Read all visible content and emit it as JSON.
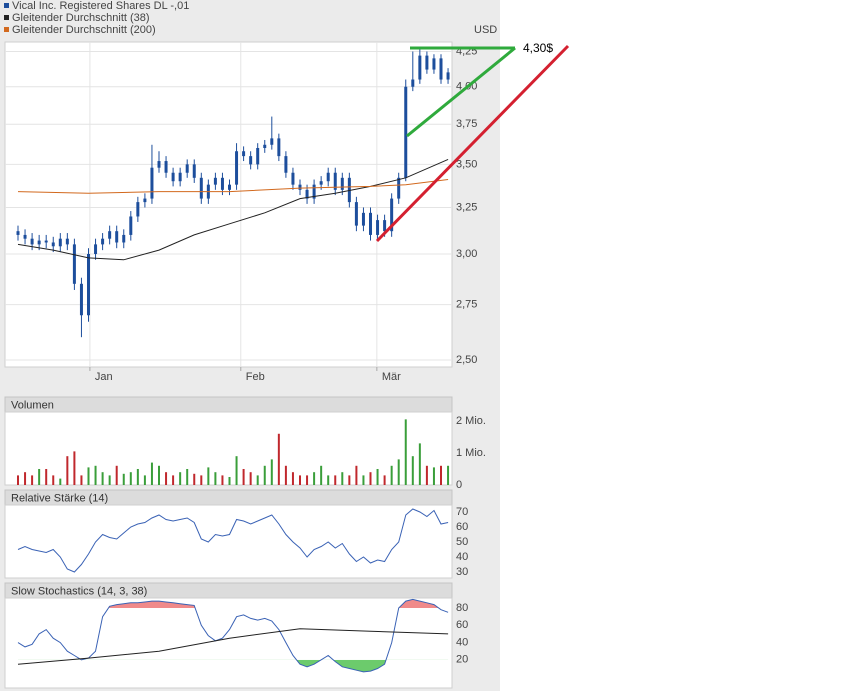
{
  "chart_data": [
    {
      "type": "candlestick",
      "series": [
        {
          "name": "Vical Inc. Registered Shares DL -,01",
          "color": "#1d4e9c",
          "open": [
            3.12,
            3.1,
            3.08,
            3.05,
            3.07,
            3.06,
            3.04,
            3.08,
            3.05,
            2.85,
            2.7,
            3.0,
            3.05,
            3.08,
            3.12,
            3.06,
            3.1,
            3.2,
            3.28,
            3.3,
            3.48,
            3.52,
            3.45,
            3.4,
            3.45,
            3.5,
            3.42,
            3.3,
            3.38,
            3.42,
            3.35,
            3.38,
            3.58,
            3.55,
            3.5,
            3.6,
            3.62,
            3.66,
            3.55,
            3.45,
            3.38,
            3.35,
            3.3,
            3.38,
            3.4,
            3.45,
            3.35,
            3.42,
            3.28,
            3.15,
            3.22,
            3.1,
            3.18,
            3.12,
            3.3,
            3.42,
            4.0,
            4.05,
            4.22,
            4.12,
            4.2,
            4.05
          ],
          "high": [
            3.15,
            3.13,
            3.11,
            3.1,
            3.1,
            3.09,
            3.11,
            3.11,
            3.08,
            2.88,
            3.03,
            3.08,
            3.11,
            3.15,
            3.15,
            3.13,
            3.23,
            3.31,
            3.33,
            3.62,
            3.58,
            3.55,
            3.48,
            3.48,
            3.53,
            3.53,
            3.45,
            3.41,
            3.45,
            3.45,
            3.41,
            3.63,
            3.61,
            3.58,
            3.63,
            3.65,
            3.8,
            3.69,
            3.58,
            3.48,
            3.41,
            3.38,
            3.41,
            3.43,
            3.48,
            3.48,
            3.45,
            3.45,
            3.31,
            3.25,
            3.25,
            3.21,
            3.21,
            3.33,
            3.45,
            4.05,
            4.25,
            4.28,
            4.25,
            4.23,
            4.23,
            4.13
          ],
          "low": [
            3.07,
            3.05,
            3.02,
            3.02,
            3.03,
            3.01,
            3.01,
            3.02,
            2.82,
            2.6,
            2.67,
            2.97,
            3.02,
            3.05,
            3.03,
            3.03,
            3.07,
            3.17,
            3.25,
            3.27,
            3.45,
            3.42,
            3.37,
            3.37,
            3.42,
            3.39,
            3.27,
            3.27,
            3.35,
            3.32,
            3.32,
            3.35,
            3.52,
            3.47,
            3.47,
            3.57,
            3.59,
            3.52,
            3.42,
            3.35,
            3.32,
            3.27,
            3.27,
            3.35,
            3.37,
            3.32,
            3.32,
            3.25,
            3.12,
            3.12,
            3.07,
            3.07,
            3.09,
            3.09,
            3.27,
            3.4,
            3.97,
            4.02,
            4.09,
            4.09,
            4.02,
            4.02
          ],
          "close": [
            3.1,
            3.08,
            3.05,
            3.07,
            3.06,
            3.04,
            3.08,
            3.05,
            2.85,
            2.7,
            3.0,
            3.05,
            3.08,
            3.12,
            3.06,
            3.1,
            3.2,
            3.28,
            3.3,
            3.48,
            3.52,
            3.45,
            3.4,
            3.45,
            3.5,
            3.42,
            3.3,
            3.38,
            3.42,
            3.35,
            3.38,
            3.58,
            3.55,
            3.5,
            3.6,
            3.62,
            3.66,
            3.55,
            3.45,
            3.38,
            3.35,
            3.3,
            3.38,
            3.4,
            3.45,
            3.35,
            3.42,
            3.28,
            3.15,
            3.22,
            3.1,
            3.18,
            3.12,
            3.3,
            3.42,
            4.0,
            4.05,
            4.22,
            4.12,
            4.2,
            4.05,
            4.1
          ]
        },
        {
          "name": "Gleitender Durchschnitt (38)",
          "color": "#222222",
          "x": [
            0,
            5,
            10,
            15,
            20,
            25,
            30,
            35,
            40,
            45,
            50,
            55,
            61
          ],
          "values": [
            3.05,
            3.02,
            2.98,
            2.97,
            3.02,
            3.1,
            3.16,
            3.22,
            3.3,
            3.33,
            3.37,
            3.42,
            3.53
          ]
        },
        {
          "name": "Gleitender Durchschnitt (200)",
          "color": "#d2691e",
          "x": [
            0,
            10,
            20,
            30,
            40,
            50,
            55,
            61
          ],
          "values": [
            3.34,
            3.33,
            3.34,
            3.34,
            3.36,
            3.37,
            3.38,
            3.41
          ]
        }
      ],
      "x": [
        0,
        1,
        2,
        3,
        4,
        5,
        6,
        7,
        8,
        9,
        10,
        11,
        12,
        13,
        14,
        15,
        16,
        17,
        18,
        19,
        20,
        21,
        22,
        23,
        24,
        25,
        26,
        27,
        28,
        29,
        30,
        31,
        32,
        33,
        34,
        35,
        36,
        37,
        38,
        39,
        40,
        41,
        42,
        43,
        44,
        45,
        46,
        47,
        48,
        49,
        50,
        51,
        52,
        53,
        54,
        55,
        56,
        57,
        58,
        59,
        60,
        61
      ],
      "xlim": [
        -1.56,
        61.56
      ],
      "xticks": [
        {
          "value": 10.2,
          "label": "Jan"
        },
        {
          "value": 31.6,
          "label": "Feb"
        },
        {
          "value": 50.9,
          "label": "Mär"
        }
      ],
      "ylim": [
        2.47,
        4.32
      ],
      "log_scale": true,
      "grid": true,
      "yticks": [
        {
          "value": 2.5,
          "label": "2,50"
        },
        {
          "value": 2.75,
          "label": "2,75"
        },
        {
          "value": 3,
          "label": "3,00"
        },
        {
          "value": 3.25,
          "label": "3,25"
        },
        {
          "value": 3.5,
          "label": "3,50"
        },
        {
          "value": 3.75,
          "label": "3,75"
        },
        {
          "value": 4,
          "label": "4,00"
        },
        {
          "value": 4.25,
          "label": "4,25"
        }
      ],
      "y_label": "USD",
      "annotation": "4,30$"
    },
    {
      "type": "bar",
      "title": "Volumen",
      "up_color": "#3a9e3a",
      "down_color": "#c0282d",
      "x": [
        0,
        1,
        2,
        3,
        4,
        5,
        6,
        7,
        8,
        9,
        10,
        11,
        12,
        13,
        14,
        15,
        16,
        17,
        18,
        19,
        20,
        21,
        22,
        23,
        24,
        25,
        26,
        27,
        28,
        29,
        30,
        31,
        32,
        33,
        34,
        35,
        36,
        37,
        38,
        39,
        40,
        41,
        42,
        43,
        44,
        45,
        46,
        47,
        48,
        49,
        50,
        51,
        52,
        53,
        54,
        55,
        56,
        57,
        58,
        59,
        60,
        61
      ],
      "values": [
        0.3,
        0.4,
        0.3,
        0.5,
        0.5,
        0.3,
        0.2,
        0.9,
        1.05,
        0.3,
        0.55,
        0.6,
        0.4,
        0.3,
        0.6,
        0.35,
        0.4,
        0.5,
        0.3,
        0.7,
        0.6,
        0.4,
        0.3,
        0.4,
        0.5,
        0.35,
        0.3,
        0.55,
        0.4,
        0.3,
        0.25,
        0.9,
        0.5,
        0.4,
        0.3,
        0.6,
        0.8,
        1.6,
        0.6,
        0.4,
        0.3,
        0.3,
        0.4,
        0.6,
        0.3,
        0.3,
        0.4,
        0.3,
        0.6,
        0.3,
        0.4,
        0.5,
        0.3,
        0.6,
        0.8,
        2.05,
        0.9,
        1.3,
        0.6,
        0.55,
        0.6,
        0.6
      ],
      "xlim": [
        -1.56,
        61.56
      ],
      "ylim": [
        0,
        2.28
      ],
      "yticks": [
        0,
        {
          "value": 1,
          "label": "1 Mio."
        },
        {
          "value": 2,
          "label": "2 Mio."
        }
      ]
    },
    {
      "type": "line",
      "title": "Relative Stärke (14)",
      "x": [
        0,
        1,
        2,
        3,
        4,
        5,
        6,
        7,
        8,
        9,
        10,
        11,
        12,
        13,
        14,
        15,
        16,
        17,
        18,
        19,
        20,
        21,
        22,
        23,
        24,
        25,
        26,
        27,
        28,
        29,
        30,
        31,
        32,
        33,
        34,
        35,
        36,
        37,
        38,
        39,
        40,
        41,
        42,
        43,
        44,
        45,
        46,
        47,
        48,
        49,
        50,
        51,
        52,
        53,
        54,
        55,
        56,
        57,
        58,
        59,
        60,
        61
      ],
      "series": [
        {
          "color": "#3a62b5",
          "values": [
            45,
            47,
            45,
            44,
            43,
            45,
            40,
            32,
            30,
            35,
            42,
            50,
            55,
            53,
            52,
            56,
            60,
            62,
            63,
            66,
            68,
            65,
            64,
            65,
            66,
            63,
            52,
            50,
            55,
            54,
            55,
            65,
            64,
            62,
            64,
            66,
            68,
            62,
            55,
            50,
            46,
            40,
            45,
            47,
            50,
            46,
            49,
            42,
            37,
            40,
            36,
            38,
            37,
            45,
            50,
            68,
            72,
            70,
            67,
            71,
            62,
            63
          ]
        }
      ],
      "xlim": [
        -1.56,
        61.56
      ],
      "ylim": [
        26,
        74.7
      ],
      "yticks": [
        30,
        40,
        50,
        60,
        70
      ]
    },
    {
      "type": "line",
      "title": "Slow Stochastics (14, 3, 38)",
      "fill_above_color": "#f08a8a",
      "fill_below_color": "#6ccb6c",
      "x": [
        0,
        1,
        2,
        3,
        4,
        5,
        6,
        7,
        8,
        9,
        10,
        11,
        12,
        13,
        14,
        15,
        16,
        17,
        18,
        19,
        20,
        21,
        22,
        23,
        24,
        25,
        26,
        27,
        28,
        29,
        30,
        31,
        32,
        33,
        34,
        35,
        36,
        37,
        38,
        39,
        40,
        41,
        42,
        43,
        44,
        45,
        46,
        47,
        48,
        49,
        50,
        51,
        52,
        53,
        54,
        55,
        56,
        57,
        58,
        59,
        60,
        61
      ],
      "series": [
        {
          "color": "#3a62b5",
          "values": [
            40,
            35,
            38,
            50,
            55,
            45,
            40,
            30,
            25,
            20,
            22,
            30,
            70,
            82,
            84,
            85,
            86,
            86,
            87,
            88,
            88,
            87,
            86,
            85,
            84,
            83,
            60,
            48,
            42,
            45,
            55,
            70,
            72,
            68,
            66,
            68,
            65,
            55,
            40,
            25,
            15,
            12,
            15,
            20,
            25,
            18,
            12,
            10,
            8,
            6,
            7,
            10,
            15,
            40,
            80,
            88,
            90,
            88,
            86,
            84,
            78,
            75
          ]
        },
        {
          "color": "#222222",
          "x": [
            0,
            10,
            20,
            30,
            40,
            50,
            61
          ],
          "values": [
            15,
            22,
            30,
            45,
            56,
            53,
            50
          ]
        }
      ],
      "xlim": [
        -1.56,
        61.56
      ],
      "ylim": [
        -12.6,
        91.6
      ],
      "yticks": [
        20,
        40,
        60,
        80
      ]
    }
  ]
}
